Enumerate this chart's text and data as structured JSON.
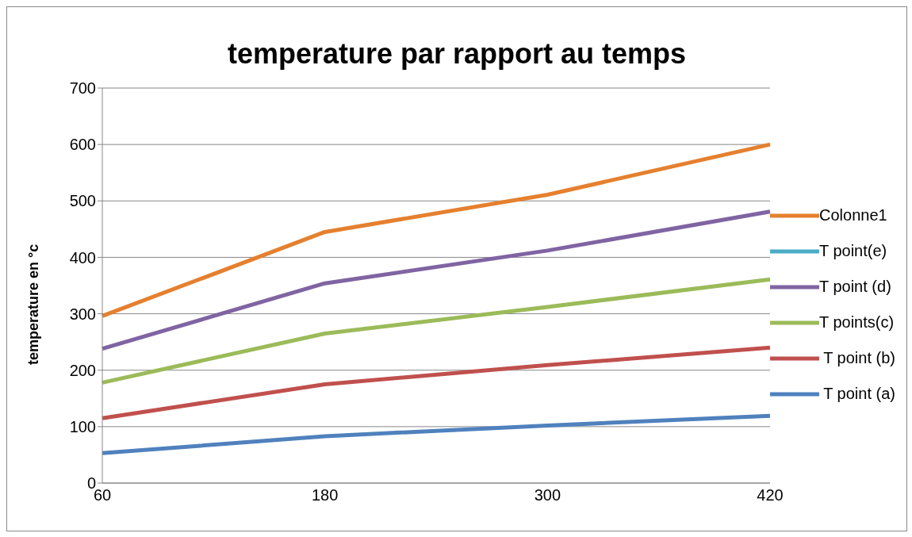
{
  "chart_data": {
    "type": "line",
    "title": "temperature par rapport au temps",
    "ylabel": "temperature en °c",
    "categories": [
      "60",
      "180",
      "300",
      "420"
    ],
    "series": [
      {
        "name": "Colonne1",
        "color": "#e5802f",
        "values": [
          296,
          445,
          511,
          600
        ]
      },
      {
        "name": "T point(e)",
        "color": "#4bacc6",
        "values": [
          null,
          null,
          null,
          null
        ]
      },
      {
        "name": "T point (d)",
        "color": "#8064a2",
        "values": [
          238,
          354,
          412,
          481
        ]
      },
      {
        "name": "T points(c)",
        "color": "#9bbb59",
        "values": [
          178,
          265,
          312,
          361
        ]
      },
      {
        "name": " T point (b)",
        "color": "#c0504d",
        "values": [
          115,
          175,
          209,
          240
        ]
      },
      {
        "name": " T point (a)",
        "color": "#4f81bd",
        "values": [
          53,
          83,
          102,
          119
        ]
      }
    ],
    "ylim": [
      0,
      700
    ],
    "yticks": [
      0,
      100,
      200,
      300,
      400,
      500,
      600,
      700
    ],
    "grid": "y",
    "legend": "right",
    "marker": "none",
    "line_style": "solid"
  }
}
